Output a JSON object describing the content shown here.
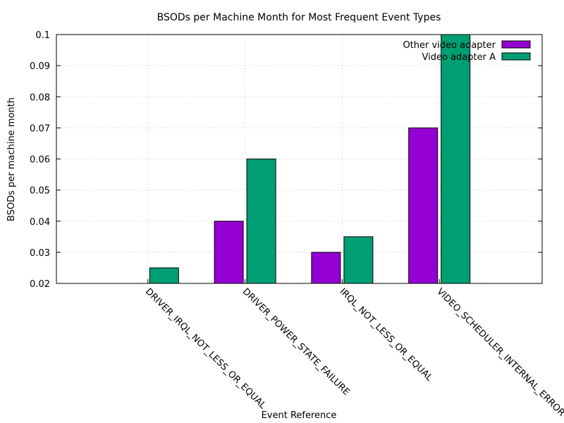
{
  "chart_data": {
    "type": "bar",
    "title": "BSODs per Machine Month for Most Frequent Event Types",
    "xlabel": "Event Reference",
    "ylabel": "BSODs per machine month",
    "ylim": [
      0.02,
      0.1
    ],
    "yticks": [
      "0.02",
      "0.03",
      "0.04",
      "0.05",
      "0.06",
      "0.07",
      "0.08",
      "0.09",
      "0.1"
    ],
    "grid": true,
    "legend_position": "top-right",
    "categories": [
      "DRIVER_IRQL_NOT_LESS_OR_EQUAL",
      "DRIVER_POWER_STATE_FAILURE",
      "IRQL_NOT_LESS_OR_EQUAL",
      "VIDEO_SCHEDULER_INTERNAL_ERROR"
    ],
    "series": [
      {
        "name": "Other video adapter",
        "color": "#9400d3",
        "values": [
          0.02,
          0.04,
          0.03,
          0.07
        ]
      },
      {
        "name": "Video adapter A",
        "color": "#009e73",
        "values": [
          0.025,
          0.06,
          0.035,
          0.1
        ]
      }
    ]
  }
}
